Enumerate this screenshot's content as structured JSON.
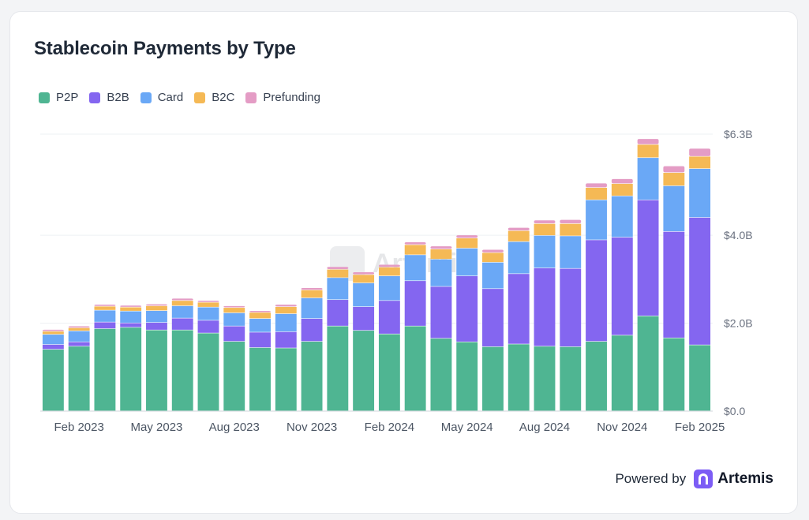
{
  "card": {
    "title": "Stablecoin Payments by Type"
  },
  "footer": {
    "powered_by": "Powered by",
    "brand": "Artemis"
  },
  "watermark": {
    "text": "Artemis"
  },
  "chart_data": {
    "type": "bar",
    "stacked": true,
    "title": "Stablecoin Payments by Type",
    "legend_position": "top-left",
    "grid": "horizontal",
    "y_axis_position": "right",
    "y_ticks": [
      "$0.0",
      "$2.0B",
      "$4.0B",
      "$6.3B"
    ],
    "y_tick_values": [
      0,
      2.0,
      4.0,
      6.3
    ],
    "x_tick_labels": [
      "Feb 2023",
      "May 2023",
      "Aug 2023",
      "Nov 2023",
      "Feb 2024",
      "May 2024",
      "Aug 2024",
      "Nov 2024",
      "Feb 2025"
    ],
    "x_tick_indices": [
      1,
      4,
      7,
      10,
      13,
      16,
      19,
      22,
      25
    ],
    "ylim": [
      0,
      6.3
    ],
    "categories": [
      "Jan 2023",
      "Feb 2023",
      "Mar 2023",
      "Apr 2023",
      "May 2023",
      "Jun 2023",
      "Jul 2023",
      "Aug 2023",
      "Sep 2023",
      "Oct 2023",
      "Nov 2023",
      "Dec 2023",
      "Jan 2024",
      "Feb 2024",
      "Mar 2024",
      "Apr 2024",
      "May 2024",
      "Jun 2024",
      "Jul 2024",
      "Aug 2024",
      "Sep 2024",
      "Oct 2024",
      "Nov 2024",
      "Dec 2024",
      "Jan 2025",
      "Feb 2025"
    ],
    "series": [
      {
        "name": "P2P",
        "color": "#4fb592",
        "values": [
          1.4,
          1.47,
          1.87,
          1.9,
          1.84,
          1.84,
          1.77,
          1.58,
          1.44,
          1.43,
          1.58,
          1.93,
          1.83,
          1.75,
          1.93,
          1.65,
          1.57,
          1.46,
          1.52,
          1.47,
          1.46,
          1.58,
          1.72,
          2.16,
          1.66,
          1.5
        ]
      },
      {
        "name": "B2B",
        "color": "#8466f0",
        "values": [
          0.11,
          0.1,
          0.15,
          0.1,
          0.17,
          0.27,
          0.29,
          0.35,
          0.35,
          0.37,
          0.52,
          0.6,
          0.54,
          0.76,
          1.03,
          1.18,
          1.5,
          1.32,
          1.6,
          1.78,
          1.78,
          2.31,
          2.23,
          2.64,
          2.42,
          2.9
        ]
      },
      {
        "name": "Card",
        "color": "#6aa8f6",
        "values": [
          0.23,
          0.25,
          0.27,
          0.27,
          0.27,
          0.28,
          0.3,
          0.3,
          0.31,
          0.41,
          0.47,
          0.5,
          0.54,
          0.56,
          0.59,
          0.62,
          0.63,
          0.6,
          0.73,
          0.74,
          0.74,
          0.91,
          0.94,
          0.96,
          1.04,
          1.11
        ]
      },
      {
        "name": "B2C",
        "color": "#f5b955",
        "values": [
          0.07,
          0.07,
          0.09,
          0.09,
          0.11,
          0.12,
          0.11,
          0.12,
          0.14,
          0.16,
          0.18,
          0.19,
          0.19,
          0.2,
          0.23,
          0.23,
          0.23,
          0.22,
          0.25,
          0.27,
          0.28,
          0.28,
          0.28,
          0.3,
          0.3,
          0.28
        ]
      },
      {
        "name": "Prefunding",
        "color": "#e49cc5",
        "values": [
          0.04,
          0.04,
          0.04,
          0.04,
          0.04,
          0.05,
          0.04,
          0.04,
          0.04,
          0.05,
          0.05,
          0.06,
          0.06,
          0.06,
          0.06,
          0.07,
          0.07,
          0.07,
          0.07,
          0.08,
          0.09,
          0.1,
          0.11,
          0.13,
          0.15,
          0.18
        ]
      }
    ]
  }
}
